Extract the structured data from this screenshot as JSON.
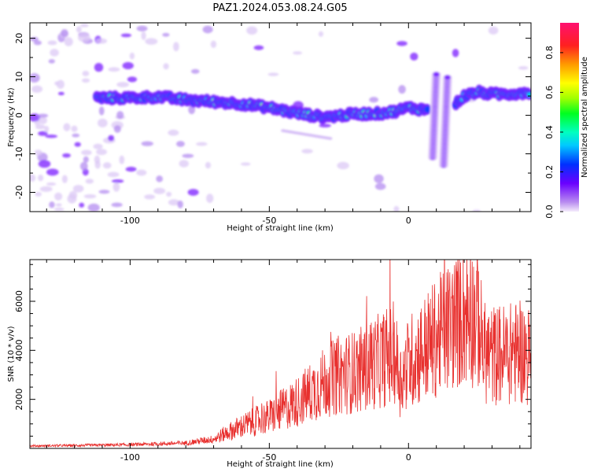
{
  "title": "PAZ1.2024.053.08.24.G05",
  "chart_data": [
    {
      "type": "heatmap",
      "xlabel": "Height of straight line (km)",
      "ylabel": "Frequency (Hz)",
      "xlim": [
        -136,
        44
      ],
      "ylim": [
        -25,
        24
      ],
      "x_ticks": [
        -100,
        -50,
        0
      ],
      "y_ticks": [
        -20,
        -10,
        0,
        10,
        20
      ],
      "colorbar": {
        "label": "Normalized spectral amplitude",
        "range": [
          0,
          0.95
        ],
        "ticks": [
          0.0,
          0.2,
          0.4,
          0.6,
          0.8
        ]
      },
      "ridge": {
        "x": [
          -112,
          -100,
          -90,
          -80,
          -70,
          -60,
          -50,
          -40,
          -30,
          -20,
          -10,
          -5,
          0,
          5
        ],
        "y": [
          4.5,
          4.5,
          4.8,
          4.0,
          3.5,
          3.0,
          2.0,
          0.5,
          -0.5,
          0.3,
          0.5,
          1.0,
          2.0,
          1.5
        ]
      },
      "ridge_upper": {
        "x": [
          17,
          20,
          25,
          30,
          35,
          44
        ],
        "y": [
          3.0,
          5.0,
          6.0,
          5.5,
          5.5,
          6.0
        ]
      },
      "vertical_streaks": [
        {
          "x": 10,
          "y_range": [
            -11,
            11
          ]
        },
        {
          "x": 14,
          "y_range": [
            -13,
            10
          ]
        }
      ]
    },
    {
      "type": "line",
      "xlabel": "Height of straight line (km)",
      "ylabel": "SNR (10 * v/v)",
      "xlim": [
        -136,
        44
      ],
      "ylim": [
        0,
        7700
      ],
      "x_ticks": [
        -100,
        -50,
        0
      ],
      "y_ticks": [
        2000,
        4000,
        6000
      ],
      "series": [
        {
          "color": "#e8312f",
          "x": [
            -136,
            -120,
            -100,
            -80,
            -70,
            -65,
            -60,
            -55,
            -50,
            -45,
            -40,
            -35,
            -30,
            -25,
            -20,
            -15,
            -10,
            -5,
            -3,
            0,
            5,
            10,
            15,
            20,
            25,
            27,
            30,
            35,
            40,
            44
          ],
          "y": [
            100,
            120,
            150,
            220,
            380,
            650,
            900,
            1100,
            1300,
            1600,
            1900,
            2300,
            2700,
            3000,
            3100,
            3300,
            3600,
            3900,
            2800,
            3500,
            4000,
            4500,
            5000,
            5500,
            5300,
            3900,
            3800,
            3850,
            3900,
            3800
          ]
        }
      ]
    }
  ]
}
